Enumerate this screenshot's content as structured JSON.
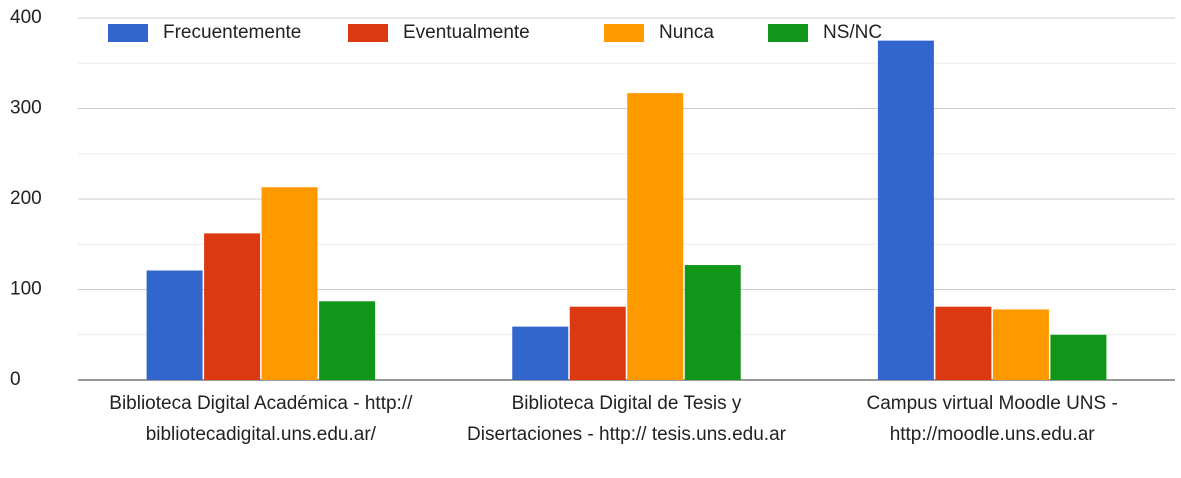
{
  "chart_data": {
    "type": "bar",
    "categories": [
      "Biblioteca Digital Académica - http:// bibliotecadigital.uns.edu.ar/",
      "Biblioteca Digital de Tesis y Disertaciones - http:// tesis.uns.edu.ar",
      "Campus virtual Moodle UNS - http://moodle.uns.edu.ar"
    ],
    "series": [
      {
        "name": "Frecuentemente",
        "color": "#3366cc",
        "values": [
          121,
          59,
          375
        ]
      },
      {
        "name": "Eventualmente",
        "color": "#dc3912",
        "values": [
          162,
          81,
          81
        ]
      },
      {
        "name": "Nunca",
        "color": "#ff9900",
        "values": [
          213,
          317,
          78
        ]
      },
      {
        "name": "NS/NC",
        "color": "#109618",
        "values": [
          87,
          127,
          50
        ]
      }
    ],
    "ylim": [
      0,
      400
    ],
    "yticks": [
      0,
      100,
      200,
      300,
      400
    ],
    "minor_yticks": [
      50,
      150,
      250,
      350
    ],
    "grid": true,
    "legend": "top"
  }
}
